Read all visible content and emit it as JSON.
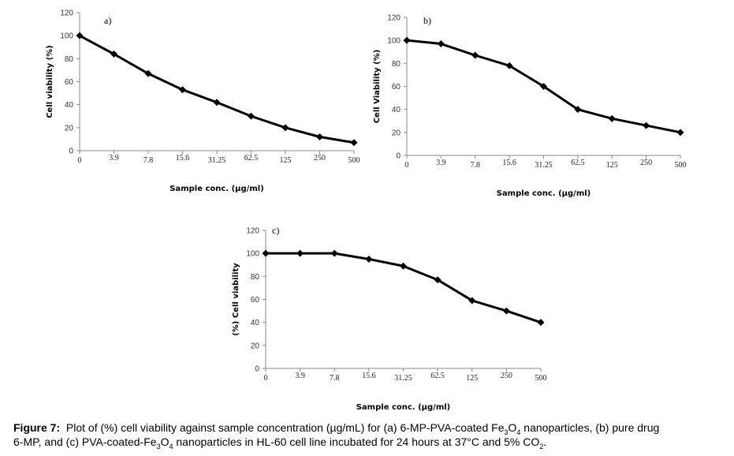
{
  "chart_data": [
    {
      "type": "line",
      "panel_label": "a)",
      "title": "",
      "xlabel": "Sample conc. (µg/ml)",
      "ylabel": "Cell viability (%)",
      "categories": [
        "0",
        "3.9",
        "7.8",
        "15.6",
        "31.25",
        "62.5",
        "125",
        "250",
        "500"
      ],
      "series": [
        {
          "name": "6-MP-PVA-coated Fe3O4 nanoparticles",
          "values": [
            100,
            84,
            67,
            53,
            42,
            30,
            20,
            12,
            7
          ]
        }
      ],
      "yticks": [
        0,
        20,
        40,
        60,
        80,
        100,
        120
      ],
      "ylim": [
        0,
        120
      ],
      "grid": false,
      "legend": "none",
      "marker": "diamond",
      "color": "#000000"
    },
    {
      "type": "line",
      "panel_label": "b)",
      "title": "",
      "xlabel": "Sample conc. (µg/ml)",
      "ylabel": "Cell Viability (%)",
      "categories": [
        "0",
        "3.9",
        "7.8",
        "15.6",
        "31.25",
        "62.5",
        "125",
        "250",
        "500"
      ],
      "series": [
        {
          "name": "pure drug 6-MP",
          "values": [
            100,
            97,
            87,
            78,
            60,
            40,
            32,
            26,
            20
          ]
        }
      ],
      "yticks": [
        0,
        20,
        40,
        60,
        80,
        100,
        120
      ],
      "ylim": [
        0,
        120
      ],
      "grid": false,
      "legend": "none",
      "marker": "diamond",
      "color": "#000000"
    },
    {
      "type": "line",
      "panel_label": "c)",
      "title": "",
      "xlabel": "Sample conc. (µg/ml)",
      "ylabel": "(%) Cell viability",
      "categories": [
        "0",
        "3.9",
        "7.8",
        "15.6",
        "31.25",
        "62.5",
        "125",
        "250",
        "500"
      ],
      "series": [
        {
          "name": "PVA-coated-Fe3O4 nanoparticles",
          "values": [
            100,
            100,
            100,
            95,
            89,
            77,
            59,
            50,
            40
          ]
        }
      ],
      "yticks": [
        0,
        20,
        40,
        60,
        80,
        100,
        120
      ],
      "ylim": [
        0,
        120
      ],
      "grid": false,
      "legend": "none",
      "marker": "diamond",
      "color": "#000000"
    }
  ],
  "caption": {
    "label": "Figure 7:",
    "line1_part1": "Plot of (%) cell viability against sample concentration (µg/mL) for (a) 6-MP-PVA-coated Fe",
    "sub_3a": "3",
    "o_a": "O",
    "sub_4a": "4",
    "line1_part2": " nanoparticles, (b) pure drug",
    "line2_part1": "6-MP, and (c) PVA-coated-Fe",
    "sub_3c": "3",
    "o_c": "O",
    "sub_4c": "4",
    "line2_part2": " nanoparticles in HL-60 cell line incubated for 24 hours at 37°C and 5% CO",
    "sub_2": "2",
    "end": "."
  }
}
